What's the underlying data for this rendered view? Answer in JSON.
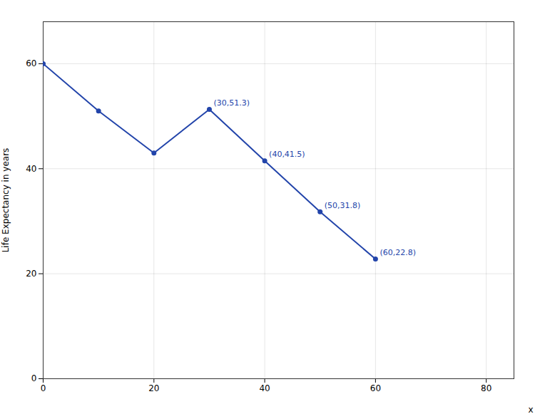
{
  "chart_data": {
    "type": "line",
    "x": [
      0,
      10,
      20,
      30,
      40,
      50,
      60
    ],
    "values": [
      60,
      51,
      43,
      51.3,
      41.5,
      31.8,
      22.8
    ],
    "color": "#2244aa",
    "marker": "circle",
    "xlabel": "x",
    "ylabel": "Life Expectancy in years",
    "xlim": [
      0,
      85
    ],
    "ylim": [
      0,
      68
    ],
    "xticks": [
      0,
      20,
      40,
      60,
      80
    ],
    "yticks": [
      0,
      20,
      40,
      60
    ],
    "grid": true,
    "annotations": [
      {
        "x": 30,
        "y": 51.3,
        "text": "(30,51.3)"
      },
      {
        "x": 40,
        "y": 41.5,
        "text": "(40,41.5)"
      },
      {
        "x": 50,
        "y": 31.8,
        "text": "(50,31.8)"
      },
      {
        "x": 60,
        "y": 22.8,
        "text": "(60,22.8)"
      }
    ]
  }
}
